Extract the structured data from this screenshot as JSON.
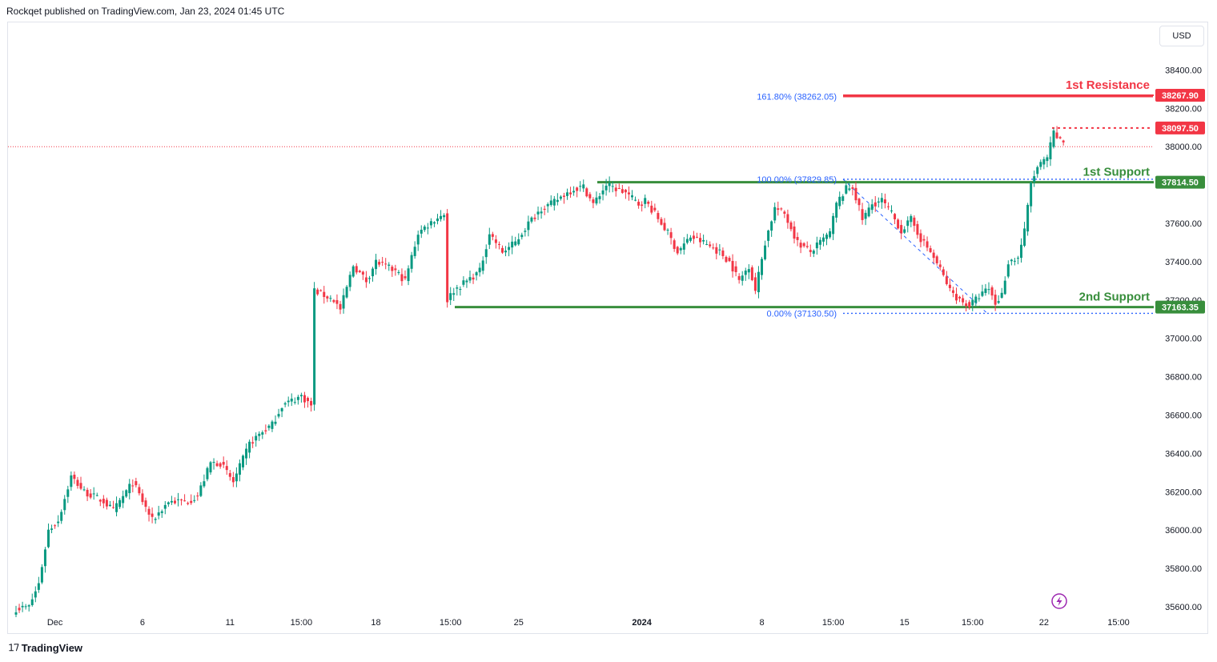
{
  "header": {
    "published": "Rockqet published on TradingView.com, Jan 23, 2024 01:45 UTC"
  },
  "currency": "USD",
  "footer": {
    "brand": "TradingView"
  },
  "colors": {
    "up": "#089981",
    "down": "#f23645",
    "support": "#388e3c",
    "resistance": "#f23645",
    "fib": "#2962ff",
    "axis_text": "#131722"
  },
  "chart_data": {
    "type": "candlestick",
    "ylim": [
      35560,
      38560
    ],
    "y_ticks": [
      35600,
      35800,
      36000,
      36200,
      36400,
      36600,
      36800,
      37000,
      37200,
      37400,
      37600,
      37800,
      38000,
      38200,
      38400
    ],
    "y_tick_labels": [
      "35600.00",
      "35800.00",
      "36000.00",
      "36200.00",
      "36400.00",
      "36600.00",
      "36800.00",
      "37000.00",
      "37200.00",
      "37400.00",
      "37600.00",
      "37800.00",
      "38000.00",
      "38200.00",
      "38400.00"
    ],
    "x_ticks": [
      {
        "bar": 12,
        "label": "Dec",
        "bold": false
      },
      {
        "bar": 39,
        "label": "6",
        "bold": false
      },
      {
        "bar": 66,
        "label": "11",
        "bold": false
      },
      {
        "bar": 88,
        "label": "15:00",
        "bold": false
      },
      {
        "bar": 111,
        "label": "18",
        "bold": false
      },
      {
        "bar": 134,
        "label": "15:00",
        "bold": false
      },
      {
        "bar": 155,
        "label": "25",
        "bold": false
      },
      {
        "bar": 193,
        "label": "2024",
        "bold": true
      },
      {
        "bar": 230,
        "label": "8",
        "bold": false
      },
      {
        "bar": 252,
        "label": "15:00",
        "bold": false
      },
      {
        "bar": 274,
        "label": "15",
        "bold": false
      },
      {
        "bar": 295,
        "label": "15:00",
        "bold": false
      },
      {
        "bar": 317,
        "label": "22",
        "bold": false
      },
      {
        "bar": 340,
        "label": "15:00",
        "bold": false
      }
    ],
    "waypoints": [
      [
        0,
        35590
      ],
      [
        4,
        35600
      ],
      [
        7,
        35720
      ],
      [
        10,
        36000
      ],
      [
        13,
        36050
      ],
      [
        17,
        36280
      ],
      [
        21,
        36200
      ],
      [
        27,
        36150
      ],
      [
        30,
        36100
      ],
      [
        34,
        36200
      ],
      [
        36,
        36250
      ],
      [
        42,
        36050
      ],
      [
        47,
        36150
      ],
      [
        53,
        36150
      ],
      [
        56,
        36180
      ],
      [
        60,
        36350
      ],
      [
        63,
        36350
      ],
      [
        67,
        36250
      ],
      [
        72,
        36450
      ],
      [
        75,
        36500
      ],
      [
        79,
        36550
      ],
      [
        82,
        36650
      ],
      [
        88,
        36700
      ],
      [
        91,
        36650
      ],
      [
        92,
        37250
      ],
      [
        98,
        37200
      ],
      [
        100,
        37150
      ],
      [
        104,
        37380
      ],
      [
        108,
        37300
      ],
      [
        111,
        37400
      ],
      [
        117,
        37350
      ],
      [
        120,
        37300
      ],
      [
        124,
        37550
      ],
      [
        129,
        37620
      ],
      [
        132,
        37650
      ],
      [
        133,
        37200
      ],
      [
        135,
        37250
      ],
      [
        139,
        37300
      ],
      [
        143,
        37350
      ],
      [
        146,
        37550
      ],
      [
        150,
        37450
      ],
      [
        154,
        37500
      ],
      [
        158,
        37600
      ],
      [
        162,
        37680
      ],
      [
        165,
        37700
      ],
      [
        169,
        37750
      ],
      [
        172,
        37780
      ],
      [
        175,
        37790
      ],
      [
        178,
        37700
      ],
      [
        182,
        37800
      ],
      [
        188,
        37760
      ],
      [
        192,
        37700
      ],
      [
        194,
        37720
      ],
      [
        197,
        37650
      ],
      [
        201,
        37550
      ],
      [
        204,
        37450
      ],
      [
        208,
        37530
      ],
      [
        212,
        37500
      ],
      [
        217,
        37450
      ],
      [
        220,
        37400
      ],
      [
        223,
        37300
      ],
      [
        226,
        37380
      ],
      [
        228,
        37250
      ],
      [
        231,
        37500
      ],
      [
        234,
        37680
      ],
      [
        237,
        37650
      ],
      [
        241,
        37500
      ],
      [
        245,
        37450
      ],
      [
        248,
        37500
      ],
      [
        251,
        37550
      ],
      [
        253,
        37700
      ],
      [
        256,
        37780
      ],
      [
        258,
        37790
      ],
      [
        261,
        37620
      ],
      [
        264,
        37700
      ],
      [
        267,
        37720
      ],
      [
        270,
        37650
      ],
      [
        273,
        37560
      ],
      [
        276,
        37620
      ],
      [
        279,
        37520
      ],
      [
        282,
        37450
      ],
      [
        285,
        37360
      ],
      [
        288,
        37250
      ],
      [
        291,
        37200
      ],
      [
        294,
        37170
      ],
      [
        297,
        37220
      ],
      [
        300,
        37260
      ],
      [
        302,
        37180
      ],
      [
        304,
        37230
      ],
      [
        306,
        37400
      ],
      [
        309,
        37420
      ],
      [
        311,
        37560
      ],
      [
        313,
        37810
      ],
      [
        315,
        37890
      ],
      [
        318,
        37940
      ],
      [
        320,
        38070
      ],
      [
        322,
        38030
      ],
      [
        323,
        38025
      ]
    ],
    "levels": [
      {
        "label": "1st Resistance",
        "price": 38267.9,
        "price_label": "38267.90",
        "kind": "resistance"
      },
      {
        "label": "1st Support",
        "price": 37814.5,
        "price_label": "37814.50",
        "kind": "support"
      },
      {
        "label": "2nd Support",
        "price": 37163.35,
        "price_label": "37163.35",
        "kind": "support"
      }
    ],
    "current_price": {
      "price": 38097.5,
      "price_label": "38097.50"
    },
    "last_close_line": 38000,
    "fib_levels": [
      {
        "label": "161.80% (38262.05)",
        "price": 38262.05
      },
      {
        "label": "100.00% (37829.85)",
        "price": 37829.85
      },
      {
        "label": "0.00% (37130.50)",
        "price": 37130.5
      }
    ]
  }
}
